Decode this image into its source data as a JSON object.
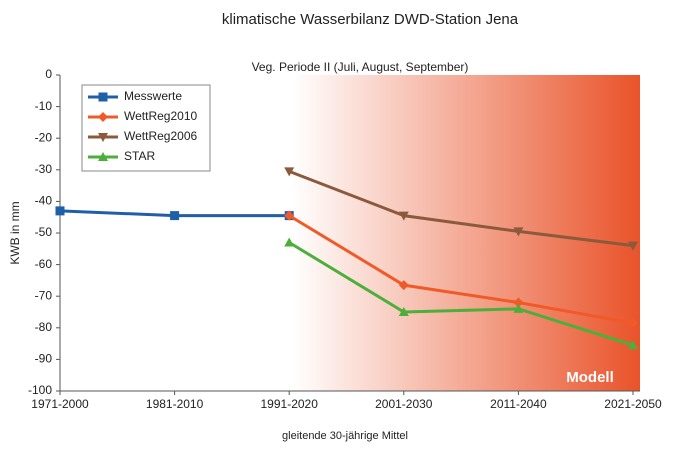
{
  "chart_data": {
    "type": "line",
    "title": "klimatische Wasserbilanz DWD-Station Jena",
    "subtitle": "Veg. Periode II (Juli, August, September)",
    "x_label": "gleitende 30-jährige Mittel",
    "y_label": "KWB in mm",
    "annotation": "Modell",
    "categories": [
      "1971-2000",
      "1981-2010",
      "1991-2020",
      "2001-2030",
      "2011-2040",
      "2021-2050"
    ],
    "series": [
      {
        "name": "Messwerte",
        "color": "#1f5fa8",
        "marker": "square",
        "values": [
          -43,
          -44.5,
          -44.5,
          null,
          null,
          null
        ]
      },
      {
        "name": "WettReg2010",
        "color": "#f05a28",
        "marker": "diamond",
        "values": [
          null,
          null,
          -44.5,
          -66.5,
          -72,
          -78.5
        ]
      },
      {
        "name": "WettReg2006",
        "color": "#8b5a3c",
        "marker": "triangle-down",
        "values": [
          null,
          null,
          -30.5,
          -44.5,
          -49.5,
          -54
        ]
      },
      {
        "name": "STAR",
        "color": "#4caf3a",
        "marker": "triangle-up",
        "values": [
          null,
          null,
          -53,
          -75,
          -74,
          -85.5
        ]
      }
    ],
    "ylim": [
      -100,
      0
    ],
    "yticks": [
      0,
      -10,
      -20,
      -30,
      -40,
      -50,
      -60,
      -70,
      -80,
      -90,
      -100
    ],
    "grid": false,
    "legend": "top-left"
  }
}
